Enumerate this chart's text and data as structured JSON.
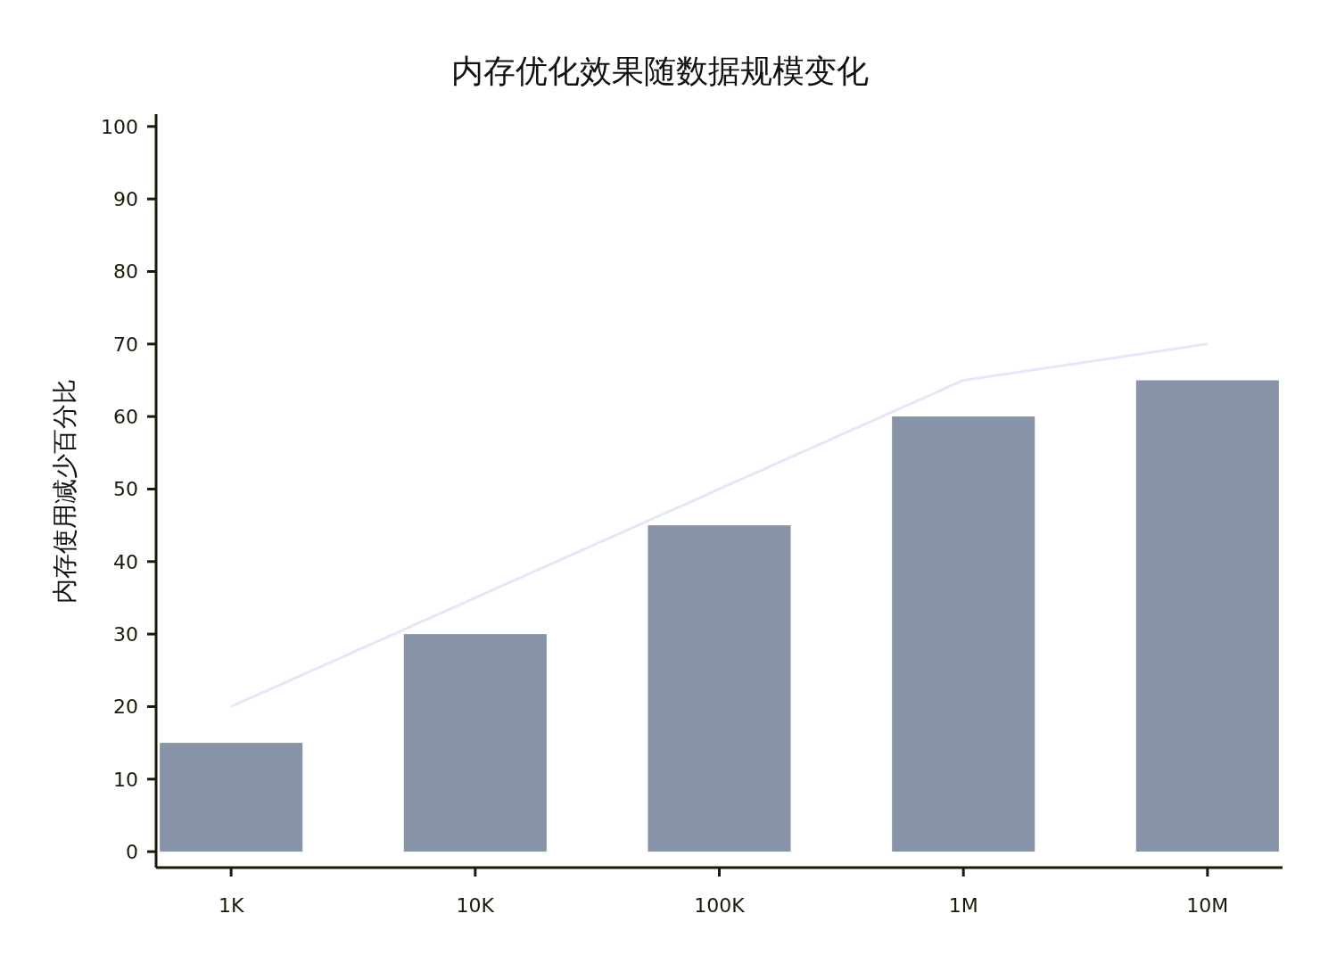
{
  "chart_data": {
    "type": "bar",
    "title": "内存优化效果随数据规模变化",
    "ylabel": "内存使用减少百分比",
    "categories": [
      "1K",
      "10K",
      "100K",
      "1M",
      "10M"
    ],
    "series": [
      {
        "color": "#8793a6",
        "values": [
          15,
          30,
          45,
          60,
          65
        ]
      },
      {
        "type": "line",
        "color": "#e6e6fa",
        "values": [
          20,
          35,
          50,
          65,
          70
        ]
      }
    ],
    "ylim": [
      -2.2,
      101.7
    ],
    "yticks": [
      0,
      10,
      20,
      30,
      40,
      50,
      60,
      70,
      80,
      90,
      100
    ],
    "grid": false
  }
}
